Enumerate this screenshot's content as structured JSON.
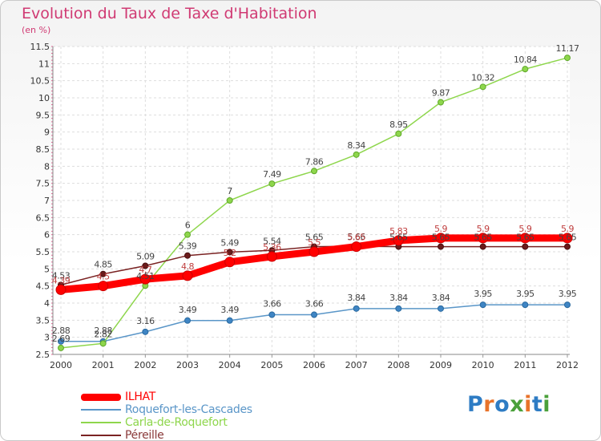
{
  "title": "Evolution du Taux de Taxe d'Habitation",
  "subtitle": "(en %)",
  "logo": "Proxiti",
  "chart_data": {
    "type": "line",
    "title": "Evolution du Taux de Taxe d'Habitation",
    "ylabel": "(en %)",
    "xlabel": "",
    "x": [
      "2000",
      "2001",
      "2002",
      "2003",
      "2004",
      "2005",
      "2006",
      "2007",
      "2008",
      "2009",
      "2010",
      "2011",
      "2012"
    ],
    "ylim": [
      2.5,
      11.5
    ],
    "yticks": [
      "2.5",
      "3",
      "3.5",
      "4",
      "4.5",
      "5",
      "5.5",
      "6",
      "6.5",
      "7",
      "7.5",
      "8",
      "8.5",
      "9",
      "9.5",
      "10",
      "10.5",
      "11",
      "11.5"
    ],
    "grid": true,
    "legend_position": "bottom-left",
    "series": [
      {
        "name": "ILHAT",
        "color": "#ff0000",
        "values": [
          4.39,
          4.5,
          4.7,
          4.8,
          5.2,
          5.36,
          5.5,
          5.65,
          5.83,
          5.9,
          5.9,
          5.9,
          5.9
        ],
        "labels": [
          "4.39",
          "4.5",
          "4.7",
          "4.8",
          "5.2",
          "5.36",
          "5.5",
          "5.65",
          "5.83",
          "5.9",
          "5.9",
          "5.9",
          "5.9"
        ]
      },
      {
        "name": "Roquefort-les-Cascades",
        "color": "#5a96c8",
        "values": [
          2.88,
          2.88,
          3.16,
          3.49,
          3.49,
          3.66,
          3.66,
          3.84,
          3.84,
          3.84,
          3.95,
          3.95,
          3.95
        ],
        "labels": [
          "2.88",
          "2.88",
          "3.16",
          "3.49",
          "3.49",
          "3.66",
          "3.66",
          "3.84",
          "3.84",
          "3.84",
          "3.95",
          "3.95",
          "3.95"
        ]
      },
      {
        "name": "Carla-de-Roquefort",
        "color": "#8ed64c",
        "values": [
          2.69,
          2.82,
          4.51,
          6,
          7,
          7.49,
          7.86,
          8.34,
          8.95,
          9.87,
          10.32,
          10.84,
          11.17
        ],
        "labels": [
          "2.69",
          "2.82",
          "4.51",
          "6",
          "7",
          "7.49",
          "7.86",
          "8.34",
          "8.95",
          "9.87",
          "10.32",
          "10.84",
          "11.17"
        ]
      },
      {
        "name": "Péreille",
        "color": "#7a2222",
        "values": [
          4.53,
          4.85,
          5.09,
          5.39,
          5.49,
          5.54,
          5.65,
          5.66,
          5.65,
          5.65,
          5.65,
          5.65,
          5.65
        ],
        "labels": [
          "4.53",
          "4.85",
          "5.09",
          "5.39",
          "5.49",
          "5.54",
          "5.65",
          "5.66",
          "5.65",
          "5.65",
          "5.65",
          "5.65",
          "5.65"
        ]
      }
    ]
  }
}
